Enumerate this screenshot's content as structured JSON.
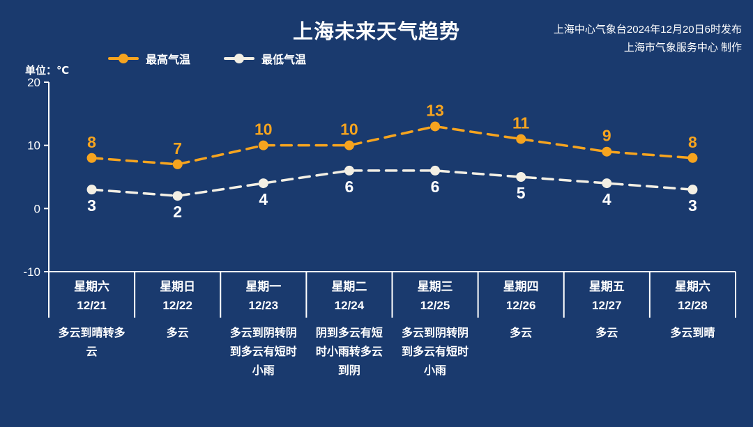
{
  "header": {
    "title": "上海未来天气趋势",
    "source_line1": "上海中心气象台2024年12月20日6时发布",
    "source_line2": "上海市气象服务中心 制作",
    "unit_label": "单位：℃"
  },
  "legend": [
    {
      "label": "最高气温",
      "color": "#f6a41f"
    },
    {
      "label": "最低气温",
      "color": "#f3efe4"
    }
  ],
  "colors": {
    "background": "#1a3a6e",
    "axis": "#ffffff",
    "high": "#f6a41f",
    "low": "#f3efe4"
  },
  "chart_data": {
    "type": "line",
    "title": "上海未来天气趋势",
    "ylabel": "单位：℃",
    "ylim": [
      -10,
      20
    ],
    "yticks": [
      20,
      10,
      0,
      -10
    ],
    "grid": "column-dividers",
    "legend_position": "top-left",
    "line_style": "dashed",
    "categories": [
      "12/21",
      "12/22",
      "12/23",
      "12/24",
      "12/25",
      "12/26",
      "12/27",
      "12/28"
    ],
    "weekdays": [
      "星期六",
      "星期日",
      "星期一",
      "星期二",
      "星期三",
      "星期四",
      "星期五",
      "星期六"
    ],
    "series": [
      {
        "name": "最高气温",
        "color": "#f6a41f",
        "label_color": "#f6a41f",
        "label_position": "above",
        "values": [
          8,
          7,
          10,
          10,
          13,
          11,
          9,
          8
        ]
      },
      {
        "name": "最低气温",
        "color": "#f3efe4",
        "label_color": "#ffffff",
        "label_position": "below",
        "values": [
          3,
          2,
          4,
          6,
          6,
          5,
          4,
          3
        ]
      }
    ],
    "weather": [
      "多云到晴转多云",
      "多云",
      "多云到阴转阴到多云有短时小雨",
      "阴到多云有短时小雨转多云到阴",
      "多云到阴转阴到多云有短时小雨",
      "多云",
      "多云",
      "多云到晴"
    ]
  }
}
